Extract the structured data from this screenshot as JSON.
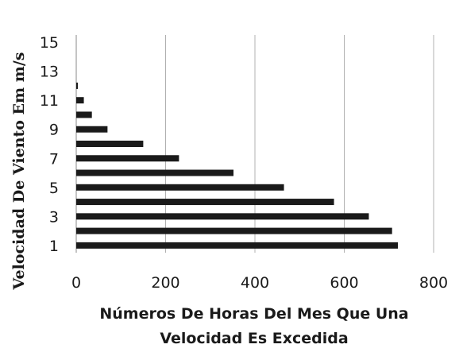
{
  "chart_data": {
    "type": "bar",
    "orientation": "horizontal",
    "categories": [
      1,
      2,
      3,
      4,
      5,
      6,
      7,
      8,
      9,
      10,
      11,
      12,
      13,
      14,
      15
    ],
    "y_tick_labels": [
      "1",
      "3",
      "5",
      "7",
      "9",
      "11",
      "13",
      "15"
    ],
    "x_tick_labels": [
      "0",
      "200",
      "400",
      "600",
      "800"
    ],
    "series": [
      {
        "values": [
          720,
          707,
          655,
          577,
          465,
          352,
          230,
          150,
          70,
          35,
          17,
          3,
          0,
          0,
          0
        ]
      }
    ],
    "xlabel_lines": [
      "Números De Horas Del Mes Que Una",
      "Velocidad Es Excedida"
    ],
    "ylabel": "Velocidad De Viento Em m/s",
    "xlim": [
      0,
      800
    ],
    "grid": "vertical",
    "bar_color": "#1a1a1a",
    "grid_color": "#b0b0b0"
  }
}
